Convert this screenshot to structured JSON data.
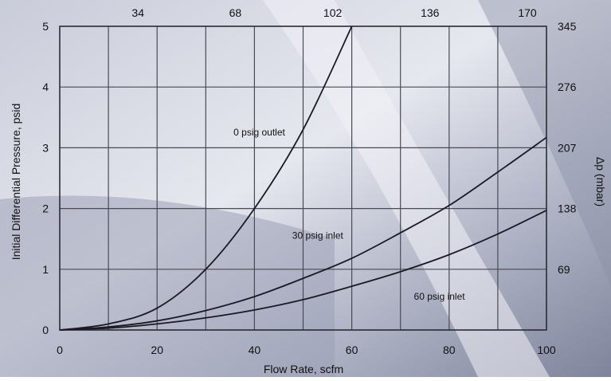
{
  "chart_data": {
    "type": "line",
    "title": "",
    "xlabel": "Flow Rate, scfm",
    "ylabel": "Initial Differential Pressure, psid",
    "secondary_ylabel": "Δp (mbar)",
    "xlim": [
      0,
      100
    ],
    "ylim": [
      0,
      5
    ],
    "x_ticks": [
      "0",
      "20",
      "40",
      "60",
      "80",
      "100"
    ],
    "y_ticks": [
      "0",
      "1",
      "2",
      "3",
      "4",
      "5"
    ],
    "top_ticks": [
      "34",
      "68",
      "102",
      "136",
      "170"
    ],
    "right_ticks": [
      "69",
      "138",
      "207",
      "276",
      "345"
    ],
    "grid": true,
    "legend": "none (labels on curves)",
    "colors": {
      "line": "#1a1a26",
      "grid": "#4a4a55",
      "background_top": "#d9dbe6",
      "background_bottom": "#8b8fa8"
    },
    "series": [
      {
        "name": "0 psig outlet",
        "x": [
          0,
          10,
          20,
          30,
          40,
          50,
          60
        ],
        "y": [
          0,
          0.1,
          0.36,
          1.0,
          2.0,
          3.3,
          5.0
        ]
      },
      {
        "name": "30 psig inlet",
        "x": [
          0,
          10,
          20,
          30,
          40,
          50,
          60,
          70,
          80,
          90,
          100
        ],
        "y": [
          0,
          0.05,
          0.15,
          0.32,
          0.55,
          0.85,
          1.18,
          1.6,
          2.05,
          2.6,
          3.17
        ]
      },
      {
        "name": "60 psig inlet",
        "x": [
          0,
          10,
          20,
          30,
          40,
          50,
          60,
          70,
          80,
          90,
          100
        ],
        "y": [
          0,
          0.03,
          0.1,
          0.2,
          0.33,
          0.5,
          0.72,
          0.96,
          1.24,
          1.58,
          1.97
        ]
      }
    ]
  }
}
